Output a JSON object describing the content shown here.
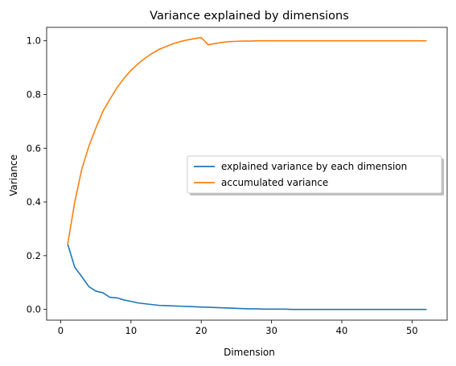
{
  "chart_data": {
    "type": "line",
    "title": "Variance explained by dimensions",
    "xlabel": "Dimension",
    "ylabel": "Variance",
    "xlim": [
      -2,
      55
    ],
    "ylim": [
      -0.04,
      1.05
    ],
    "xticks": [
      0,
      10,
      20,
      30,
      40,
      50
    ],
    "xtick_labels": [
      "0",
      "10",
      "20",
      "30",
      "40",
      "50"
    ],
    "yticks": [
      0.0,
      0.2,
      0.4,
      0.6,
      0.8,
      1.0
    ],
    "ytick_labels": [
      "0.0",
      "0.2",
      "0.4",
      "0.6",
      "0.8",
      "1.0"
    ],
    "grid": false,
    "legend_position": "center-right",
    "x": [
      1,
      2,
      3,
      4,
      5,
      6,
      7,
      8,
      9,
      10,
      11,
      12,
      13,
      14,
      15,
      16,
      17,
      18,
      19,
      20,
      21,
      22,
      23,
      24,
      25,
      26,
      27,
      28,
      29,
      30,
      31,
      32,
      33,
      34,
      35,
      36,
      37,
      38,
      39,
      40,
      41,
      42,
      43,
      44,
      45,
      46,
      47,
      48,
      49,
      50,
      51,
      52
    ],
    "series": [
      {
        "name": "explained variance by each dimension",
        "color": "#1f77b4",
        "values": [
          0.243,
          0.157,
          0.122,
          0.085,
          0.068,
          0.062,
          0.045,
          0.043,
          0.035,
          0.03,
          0.024,
          0.021,
          0.018,
          0.015,
          0.014,
          0.013,
          0.012,
          0.011,
          0.01,
          0.009,
          0.008,
          0.007,
          0.006,
          0.005,
          0.004,
          0.003,
          0.002,
          0.002,
          0.001,
          0.001,
          0.001,
          0.001,
          0,
          0,
          0,
          0,
          0,
          0,
          0,
          0,
          0,
          0,
          0,
          0,
          0,
          0,
          0,
          0,
          0,
          0,
          0,
          0
        ]
      },
      {
        "name": "accumulated variance",
        "color": "#ff7f0e",
        "values": [
          0.243,
          0.4,
          0.522,
          0.607,
          0.675,
          0.737,
          0.782,
          0.825,
          0.86,
          0.89,
          0.914,
          0.935,
          0.953,
          0.968,
          0.979,
          0.989,
          0.997,
          1.003,
          1.008,
          1.012,
          0.985,
          0.99,
          0.994,
          0.997,
          0.998,
          0.999,
          0.999,
          1.0,
          1.0,
          1.0,
          1.0,
          1.0,
          1.0,
          1.0,
          1.0,
          1.0,
          1.0,
          1.0,
          1.0,
          1.0,
          1.0,
          1.0,
          1.0,
          1.0,
          1.0,
          1.0,
          1.0,
          1.0,
          1.0,
          1.0,
          1.0,
          1.0
        ]
      }
    ]
  }
}
